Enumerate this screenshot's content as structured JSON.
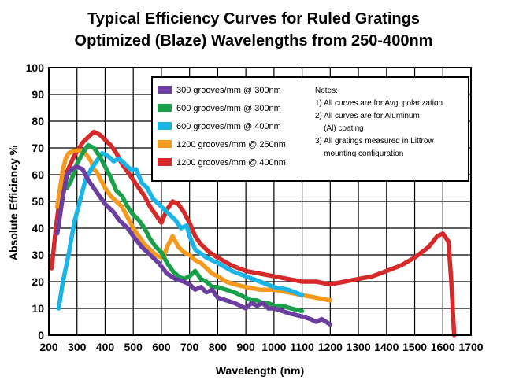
{
  "chart_data": {
    "type": "line",
    "title": [
      "Typical Efficiency Curves  for Ruled Gratings",
      "Optimized (Blaze) Wavelengths from 250-400nm"
    ],
    "xlabel": "Wavelength (nm)",
    "ylabel": "Absolute Efficiency %",
    "xlim": [
      200,
      1700
    ],
    "ylim": [
      0,
      100
    ],
    "xticks": [
      200,
      300,
      400,
      500,
      600,
      700,
      800,
      900,
      1000,
      1100,
      1200,
      1300,
      1400,
      1500,
      1600,
      1700
    ],
    "yticks": [
      0,
      10,
      20,
      30,
      40,
      50,
      60,
      70,
      80,
      90,
      100
    ],
    "grid": true,
    "legend_position": "top-right",
    "series": [
      {
        "name": "300 grooves/mm  @ 300nm",
        "color": "#6a3fa0",
        "points": [
          [
            230,
            38
          ],
          [
            250,
            52
          ],
          [
            265,
            60
          ],
          [
            280,
            62
          ],
          [
            300,
            63
          ],
          [
            320,
            62
          ],
          [
            340,
            58
          ],
          [
            360,
            55
          ],
          [
            380,
            52
          ],
          [
            400,
            49
          ],
          [
            430,
            46
          ],
          [
            450,
            43
          ],
          [
            480,
            40
          ],
          [
            500,
            37
          ],
          [
            530,
            33
          ],
          [
            560,
            30
          ],
          [
            590,
            27
          ],
          [
            620,
            23
          ],
          [
            650,
            21
          ],
          [
            680,
            20
          ],
          [
            700,
            19
          ],
          [
            720,
            17
          ],
          [
            740,
            18
          ],
          [
            760,
            16
          ],
          [
            780,
            17
          ],
          [
            800,
            14
          ],
          [
            830,
            13
          ],
          [
            860,
            12
          ],
          [
            880,
            11
          ],
          [
            900,
            10
          ],
          [
            920,
            12
          ],
          [
            940,
            11
          ],
          [
            960,
            12
          ],
          [
            980,
            10
          ],
          [
            1000,
            10
          ],
          [
            1030,
            9
          ],
          [
            1060,
            8
          ],
          [
            1100,
            7
          ],
          [
            1130,
            6
          ],
          [
            1150,
            5
          ],
          [
            1170,
            6
          ],
          [
            1200,
            4
          ]
        ]
      },
      {
        "name": "600 grooves/mm  @ 300nm",
        "color": "#1aa04a",
        "points": [
          [
            265,
            55
          ],
          [
            280,
            58
          ],
          [
            300,
            64
          ],
          [
            320,
            68
          ],
          [
            340,
            71
          ],
          [
            360,
            70
          ],
          [
            380,
            67
          ],
          [
            400,
            63
          ],
          [
            420,
            59
          ],
          [
            440,
            54
          ],
          [
            460,
            52
          ],
          [
            480,
            48
          ],
          [
            500,
            45
          ],
          [
            520,
            43
          ],
          [
            540,
            40
          ],
          [
            560,
            36
          ],
          [
            580,
            33
          ],
          [
            600,
            31
          ],
          [
            620,
            27
          ],
          [
            640,
            24
          ],
          [
            660,
            22
          ],
          [
            680,
            21
          ],
          [
            700,
            22
          ],
          [
            720,
            24
          ],
          [
            740,
            21
          ],
          [
            760,
            20
          ],
          [
            780,
            18
          ],
          [
            800,
            18
          ],
          [
            830,
            17
          ],
          [
            860,
            16
          ],
          [
            880,
            15
          ],
          [
            900,
            14
          ],
          [
            920,
            13
          ],
          [
            940,
            13
          ],
          [
            960,
            12
          ],
          [
            980,
            12
          ],
          [
            1000,
            11
          ],
          [
            1030,
            11
          ],
          [
            1060,
            10
          ],
          [
            1100,
            9
          ]
        ]
      },
      {
        "name": "600 grooves/mm  @ 400nm",
        "color": "#1ab4e6",
        "points": [
          [
            235,
            10
          ],
          [
            250,
            20
          ],
          [
            270,
            30
          ],
          [
            290,
            42
          ],
          [
            310,
            50
          ],
          [
            330,
            58
          ],
          [
            350,
            62
          ],
          [
            370,
            65
          ],
          [
            390,
            68
          ],
          [
            410,
            67
          ],
          [
            430,
            65
          ],
          [
            450,
            66
          ],
          [
            470,
            64
          ],
          [
            490,
            62
          ],
          [
            510,
            62
          ],
          [
            530,
            57
          ],
          [
            550,
            55
          ],
          [
            570,
            51
          ],
          [
            590,
            49
          ],
          [
            610,
            47
          ],
          [
            630,
            45
          ],
          [
            650,
            43
          ],
          [
            670,
            40
          ],
          [
            690,
            41
          ],
          [
            700,
            37
          ],
          [
            720,
            32
          ],
          [
            760,
            29
          ],
          [
            800,
            27
          ],
          [
            850,
            24
          ],
          [
            900,
            22
          ],
          [
            950,
            20
          ],
          [
            1000,
            18
          ],
          [
            1050,
            17
          ],
          [
            1100,
            15
          ]
        ]
      },
      {
        "name": "1200 grooves/mm  @ 250nm",
        "color": "#f59a1e",
        "points": [
          [
            230,
            48
          ],
          [
            240,
            55
          ],
          [
            250,
            62
          ],
          [
            260,
            66
          ],
          [
            270,
            68
          ],
          [
            290,
            69
          ],
          [
            310,
            69
          ],
          [
            330,
            68
          ],
          [
            350,
            65
          ],
          [
            360,
            62
          ],
          [
            370,
            61
          ],
          [
            380,
            59
          ],
          [
            390,
            57
          ],
          [
            400,
            55
          ],
          [
            420,
            52
          ],
          [
            440,
            50
          ],
          [
            460,
            48
          ],
          [
            480,
            44
          ],
          [
            500,
            40
          ],
          [
            520,
            37
          ],
          [
            540,
            34
          ],
          [
            560,
            32
          ],
          [
            580,
            30
          ],
          [
            600,
            29
          ],
          [
            610,
            30
          ],
          [
            620,
            33
          ],
          [
            630,
            35
          ],
          [
            640,
            37
          ],
          [
            650,
            35
          ],
          [
            660,
            33
          ],
          [
            680,
            31
          ],
          [
            700,
            30
          ],
          [
            720,
            28
          ],
          [
            740,
            27
          ],
          [
            760,
            25
          ],
          [
            780,
            23
          ],
          [
            800,
            22
          ],
          [
            830,
            20
          ],
          [
            860,
            19
          ],
          [
            900,
            18
          ],
          [
            950,
            17
          ],
          [
            1000,
            17
          ],
          [
            1050,
            16
          ],
          [
            1100,
            15
          ],
          [
            1150,
            14
          ],
          [
            1200,
            13
          ]
        ]
      },
      {
        "name": "1200 grooves/mm  @ 400nm",
        "color": "#d62a2a",
        "points": [
          [
            210,
            25
          ],
          [
            225,
            40
          ],
          [
            240,
            52
          ],
          [
            260,
            60
          ],
          [
            290,
            67
          ],
          [
            320,
            72
          ],
          [
            340,
            74
          ],
          [
            350,
            75
          ],
          [
            360,
            76
          ],
          [
            380,
            75
          ],
          [
            400,
            73
          ],
          [
            420,
            71
          ],
          [
            440,
            68
          ],
          [
            460,
            64
          ],
          [
            480,
            61
          ],
          [
            500,
            58
          ],
          [
            520,
            55
          ],
          [
            540,
            52
          ],
          [
            560,
            48
          ],
          [
            580,
            45
          ],
          [
            600,
            42
          ],
          [
            620,
            47
          ],
          [
            640,
            50
          ],
          [
            660,
            49
          ],
          [
            680,
            46
          ],
          [
            700,
            42
          ],
          [
            720,
            37
          ],
          [
            740,
            34
          ],
          [
            770,
            31
          ],
          [
            800,
            29
          ],
          [
            850,
            26
          ],
          [
            900,
            24
          ],
          [
            950,
            23
          ],
          [
            1000,
            22
          ],
          [
            1050,
            21
          ],
          [
            1100,
            20
          ],
          [
            1150,
            20
          ],
          [
            1200,
            19
          ],
          [
            1250,
            20
          ],
          [
            1300,
            21
          ],
          [
            1350,
            22
          ],
          [
            1400,
            24
          ],
          [
            1450,
            26
          ],
          [
            1500,
            29
          ],
          [
            1550,
            33
          ],
          [
            1580,
            37
          ],
          [
            1600,
            38
          ],
          [
            1620,
            35
          ],
          [
            1630,
            20
          ],
          [
            1640,
            0
          ]
        ]
      }
    ],
    "notes": [
      "Notes:",
      "1) All curves are for Avg. polarization",
      "2) All curves are for Aluminum",
      "    (Al) coating",
      "3) All gratings measured in Littrow",
      "    mounting configuration"
    ]
  }
}
